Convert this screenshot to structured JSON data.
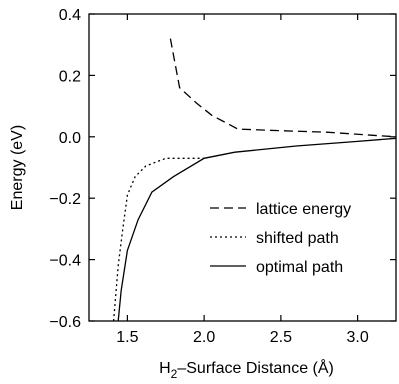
{
  "chart_data": {
    "type": "line",
    "title": "",
    "xlabel_parts": {
      "pre": "H",
      "sub": "2",
      "post": "–Surface Distance (Å)"
    },
    "ylabel": "Energy (eV)",
    "xlim": [
      1.25,
      3.25
    ],
    "ylim": [
      -0.6,
      0.4
    ],
    "xticks": [
      1.5,
      2.0,
      2.5,
      3.0
    ],
    "xtick_labels": [
      "1.5",
      "2.0",
      "2.5",
      "3.0"
    ],
    "yticks": [
      -0.6,
      -0.4,
      -0.2,
      0.0,
      0.2,
      0.4
    ],
    "ytick_labels": [
      "−0.6",
      "−0.4",
      "−0.2",
      "0.0",
      "0.2",
      "0.4"
    ],
    "grid": false,
    "legend_position": "lower-right",
    "series": [
      {
        "name": "lattice energy",
        "dash": "dashed",
        "x": [
          1.78,
          1.84,
          1.95,
          2.05,
          2.22,
          2.5,
          2.8,
          3.1,
          3.25
        ],
        "y": [
          0.32,
          0.16,
          0.11,
          0.07,
          0.025,
          0.02,
          0.015,
          0.005,
          0.0
        ]
      },
      {
        "name": "shifted path",
        "dash": "dotted",
        "x": [
          1.41,
          1.44,
          1.47,
          1.5,
          1.55,
          1.62,
          1.75,
          2.0
        ],
        "y": [
          -0.6,
          -0.42,
          -0.3,
          -0.19,
          -0.13,
          -0.095,
          -0.07,
          -0.07
        ]
      },
      {
        "name": "optimal path",
        "dash": "solid",
        "x": [
          1.44,
          1.46,
          1.5,
          1.57,
          1.66,
          1.8,
          2.0,
          2.2,
          2.6,
          3.0,
          3.25
        ],
        "y": [
          -0.6,
          -0.5,
          -0.37,
          -0.27,
          -0.18,
          -0.13,
          -0.07,
          -0.05,
          -0.03,
          -0.015,
          -0.005
        ]
      }
    ]
  }
}
